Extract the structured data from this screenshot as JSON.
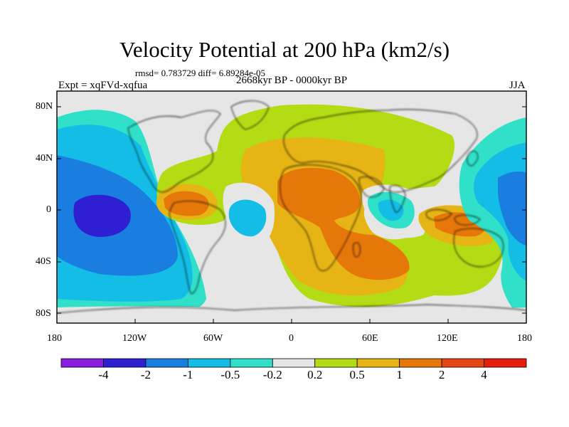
{
  "title": "Velocity Potential at 200 hPa (km2/s)",
  "stats": "rmsd= 0.783729 diff= 6.89284e-05",
  "period": "2668kyr BP - 0000kyr BP",
  "experiment": "Expt = xqFVd-xqfua",
  "season": "JJA",
  "axes": {
    "lat_ticks": [
      "80N",
      "40N",
      "0",
      "40S",
      "80S"
    ],
    "lon_ticks": [
      "180",
      "120W",
      "60W",
      "0",
      "60E",
      "120E",
      "180"
    ]
  },
  "colorbar": {
    "labels": [
      "-4",
      "-2",
      "-1",
      "-0.5",
      "-0.2",
      "0.2",
      "0.5",
      "1",
      "2",
      "4"
    ],
    "colors": [
      "#8a1ee0",
      "#2e20d2",
      "#1a7ee0",
      "#14bde6",
      "#30e0c8",
      "#e6e6e6",
      "#b4dc14",
      "#e6b414",
      "#e6780a",
      "#e64614",
      "#e61e0a"
    ]
  },
  "field_colors": {
    "dark_blue": "#2e20d2",
    "blue": "#1a7ee0",
    "light_blue": "#14bde6",
    "cyan": "#30e0c8",
    "neutral": "#e6e6e6",
    "yellow_green": "#b4dc14",
    "orange_yellow": "#e6b414",
    "orange": "#e6780a"
  }
}
